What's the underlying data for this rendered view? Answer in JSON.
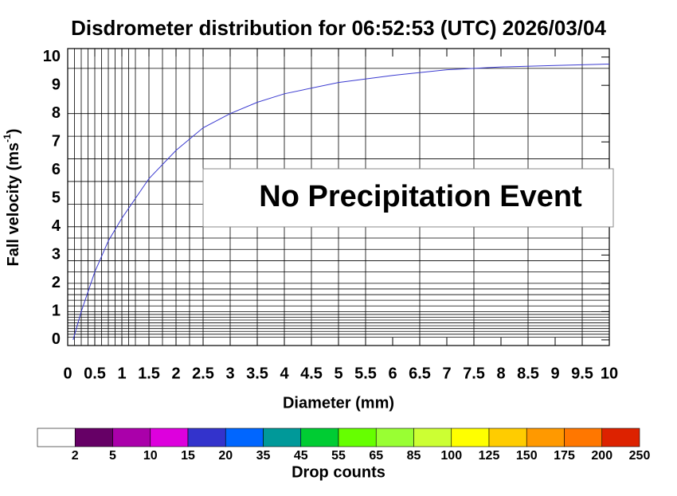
{
  "chart_data": {
    "type": "line",
    "title": "Disdrometer distribution for 06:52:53 (UTC) 2026/03/04",
    "xlabel": "Diameter (mm)",
    "ylabel": "Fall velocity (ms",
    "ylabel_sup": "-1",
    "ylabel_end": ")",
    "annotation": "No Precipitation Event",
    "xlim": [
      0,
      10
    ],
    "ylim": [
      -0.2,
      10.3
    ],
    "xticks": [
      0,
      0.5,
      1,
      1.5,
      2,
      2.5,
      3,
      3.5,
      4,
      4.5,
      5,
      5.5,
      6,
      6.5,
      7,
      7.5,
      8,
      8.5,
      9,
      9.5,
      10
    ],
    "yticks": [
      0,
      1,
      2,
      3,
      4,
      5,
      6,
      7,
      8,
      9,
      10
    ],
    "xgrid": [
      0.125,
      0.25,
      0.375,
      0.5,
      0.625,
      0.75,
      0.875,
      1,
      1.125,
      1.25,
      1.5,
      1.75,
      2,
      2.25,
      2.5,
      3,
      3.5,
      4,
      4.5,
      5,
      5.5,
      6.5,
      7.5,
      8.5,
      9.5
    ],
    "ygrid": [
      0.1,
      0.2,
      0.3,
      0.4,
      0.5,
      0.6,
      0.7,
      0.8,
      0.9,
      1,
      1.2,
      1.4,
      1.6,
      1.8,
      2,
      2.4,
      2.8,
      3.2,
      3.6,
      4,
      4.8,
      5.6,
      6.4,
      7.2,
      8,
      9.6
    ],
    "curve": {
      "color": "#3a3ad0",
      "x": [
        0.1,
        0.25,
        0.5,
        0.75,
        1,
        1.5,
        2,
        2.5,
        3,
        3.5,
        4,
        5,
        6,
        7,
        8,
        9,
        10
      ],
      "values": [
        0,
        1.0,
        2.4,
        3.5,
        4.3,
        5.7,
        6.7,
        7.5,
        8.0,
        8.4,
        8.7,
        9.1,
        9.35,
        9.55,
        9.65,
        9.7,
        9.75
      ]
    },
    "colorbar": {
      "title": "Drop counts",
      "colors": [
        "#ffffff",
        "#660066",
        "#aa00aa",
        "#dd00dd",
        "#3333cc",
        "#0066ff",
        "#009999",
        "#00cc33",
        "#66ff00",
        "#99ff33",
        "#ccff33",
        "#ffff00",
        "#ffcc00",
        "#ff9900",
        "#ff7700",
        "#dd2200"
      ],
      "labels": [
        2,
        5,
        10,
        15,
        20,
        35,
        45,
        55,
        65,
        85,
        100,
        125,
        150,
        175,
        200,
        250
      ]
    }
  }
}
